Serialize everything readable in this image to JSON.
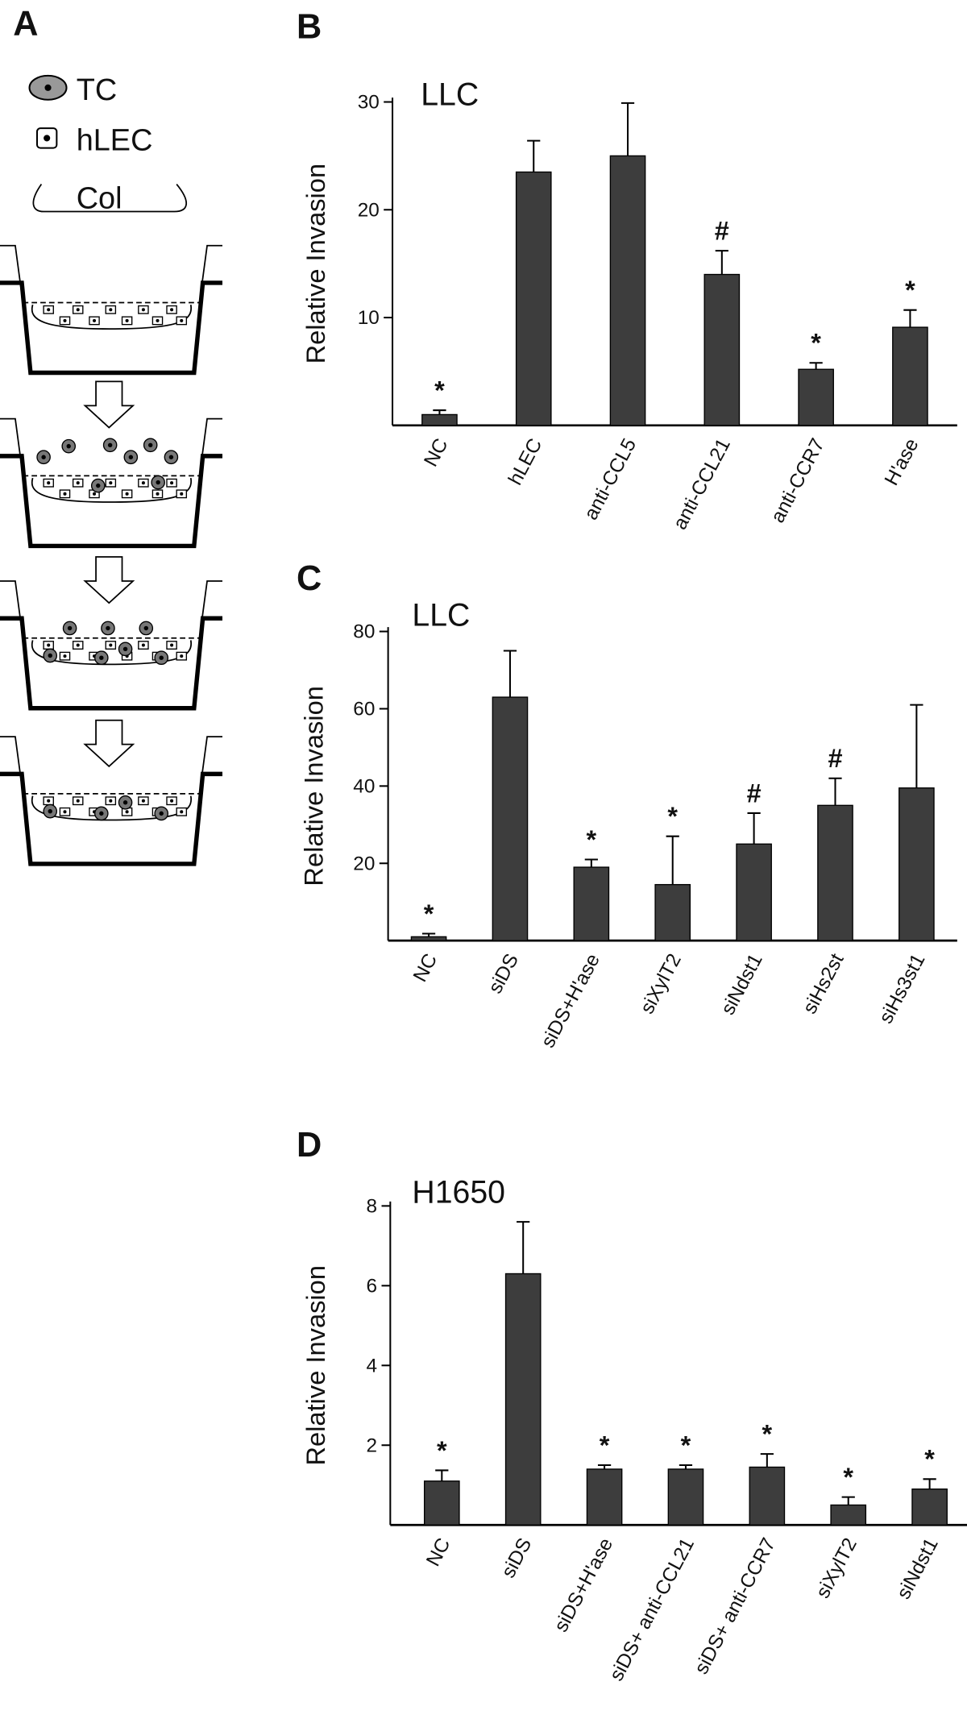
{
  "panel_labels": [
    "A",
    "B",
    "C",
    "D"
  ],
  "diagram": {
    "legend": [
      "TC",
      "hLEC"
    ],
    "matrix": "Col"
  },
  "chart_data": [
    {
      "type": "bar",
      "title": "LLC",
      "y_label": "Relative Invasion",
      "categories": [
        "NC",
        "hLEC",
        "anti-CCL5",
        "anti-CCL21",
        "anti-CCR7",
        "H'ase"
      ],
      "values": [
        1,
        23.5,
        25,
        14,
        5.2,
        9.1
      ],
      "errors": [
        0.4,
        2.9,
        4.9,
        2.2,
        0.6,
        1.6
      ],
      "annotations": [
        "*",
        null,
        null,
        "#",
        "*",
        "*"
      ],
      "color": "#3d3d3d",
      "ylim": [
        0,
        30
      ],
      "yticks": [
        10,
        20,
        30
      ]
    },
    {
      "type": "bar",
      "title": "LLC",
      "y_label": "Relative Invasion",
      "categories": [
        "NC",
        "siDS",
        "siDS+H'ase",
        "siXylT2",
        "siNdst1",
        "siHs2st",
        "siHs3st1"
      ],
      "values": [
        1,
        63,
        19,
        14.5,
        25,
        35,
        39.5
      ],
      "errors": [
        0.8,
        12,
        2,
        12.5,
        8,
        7,
        21.5
      ],
      "annotations": [
        "*",
        null,
        "*",
        "*",
        "#",
        "#",
        null
      ],
      "color": "#3d3d3d",
      "ylim": [
        0,
        80
      ],
      "yticks": [
        20,
        40,
        60,
        80
      ]
    },
    {
      "type": "bar",
      "title": "H1650",
      "y_label": "Relative Invasion",
      "categories": [
        "NC",
        "siDS",
        "siDS+H'ase",
        "siDS+ anti-CCL21",
        "siDS+ anti-CCR7",
        "siXylT2",
        "siNdst1"
      ],
      "values": [
        1.1,
        6.3,
        1.4,
        1.4,
        1.45,
        0.5,
        0.9
      ],
      "errors": [
        0.27,
        1.3,
        0.1,
        0.1,
        0.33,
        0.2,
        0.25
      ],
      "annotations": [
        "*",
        null,
        "*",
        "*",
        "*",
        "*",
        "*"
      ],
      "color": "#3d3d3d",
      "ylim": [
        0,
        8
      ],
      "yticks": [
        2,
        4,
        6,
        8
      ]
    }
  ]
}
